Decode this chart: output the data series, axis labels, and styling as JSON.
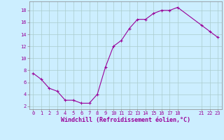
{
  "x": [
    0,
    1,
    2,
    3,
    4,
    5,
    6,
    7,
    8,
    9,
    10,
    11,
    12,
    13,
    14,
    15,
    16,
    17,
    18,
    21,
    22,
    23
  ],
  "y": [
    7.5,
    6.5,
    5.0,
    4.5,
    3.0,
    3.0,
    2.5,
    2.5,
    4.0,
    8.5,
    12.0,
    13.0,
    15.0,
    16.5,
    16.5,
    17.5,
    18.0,
    18.0,
    18.5,
    15.5,
    14.5,
    13.5
  ],
  "line_color": "#990099",
  "marker": "+",
  "marker_size": 3,
  "bg_color": "#cceeff",
  "grid_color": "#aacccc",
  "xlabel": "Windchill (Refroidissement éolien,°C)",
  "xlabel_fontsize": 6,
  "ylabel_ticks": [
    2,
    4,
    6,
    8,
    10,
    12,
    14,
    16,
    18
  ],
  "xlim": [
    -0.5,
    23.5
  ],
  "ylim": [
    1.5,
    19.5
  ],
  "xticks": [
    0,
    1,
    2,
    3,
    4,
    5,
    6,
    7,
    8,
    9,
    10,
    11,
    12,
    13,
    14,
    15,
    16,
    17,
    18,
    21,
    22,
    23
  ],
  "xtick_labels": [
    "0",
    "1",
    "2",
    "3",
    "4",
    "5",
    "6",
    "7",
    "8",
    "9",
    "10",
    "11",
    "12",
    "13",
    "14",
    "15",
    "16",
    "17",
    "18",
    "21",
    "22",
    "23"
  ],
  "tick_fontsize": 5,
  "linewidth": 0.8,
  "markeredgewidth": 0.8
}
